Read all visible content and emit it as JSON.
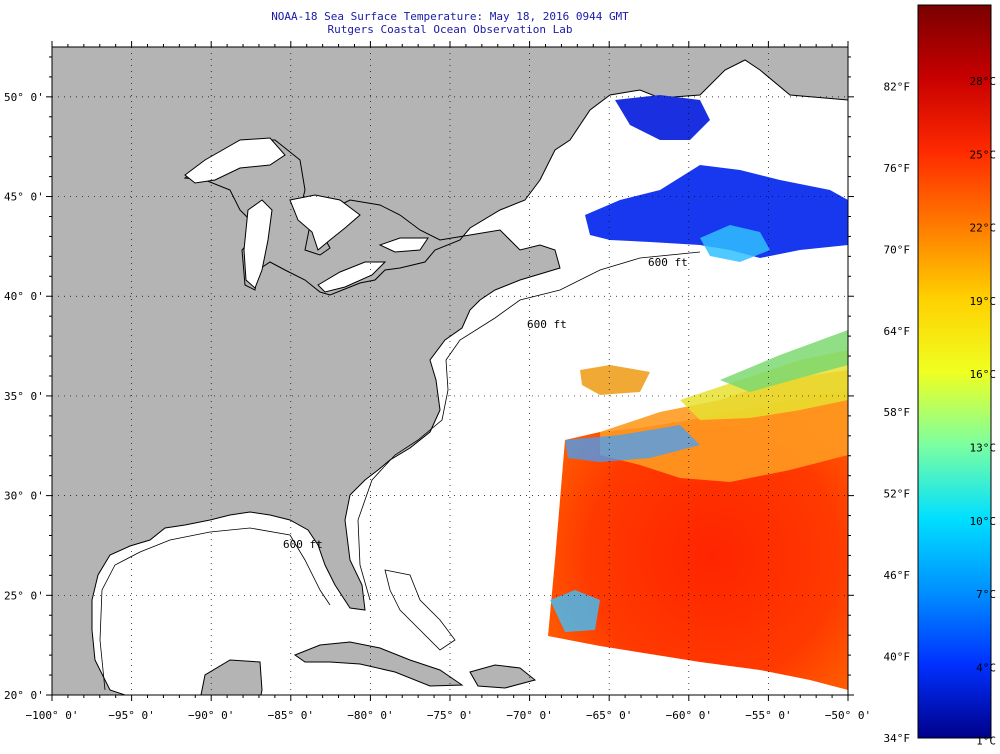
{
  "title": {
    "line1": "NOAA-18 Sea Surface Temperature:  May 18, 2016 0944 GMT",
    "line2": "Rutgers Coastal Ocean Observation Lab"
  },
  "map": {
    "lon_range": [
      -100,
      -50
    ],
    "lat_range": [
      20,
      52.5
    ],
    "lat_labels": [
      {
        "lat": 50,
        "text": "50° 0'"
      },
      {
        "lat": 45,
        "text": "45° 0'"
      },
      {
        "lat": 40,
        "text": "40° 0'"
      },
      {
        "lat": 35,
        "text": "35° 0'"
      },
      {
        "lat": 30,
        "text": "30° 0'"
      },
      {
        "lat": 25,
        "text": "25° 0'"
      },
      {
        "lat": 20,
        "text": "20° 0'"
      }
    ],
    "lon_labels": [
      {
        "lon": -100,
        "text": "−100° 0'"
      },
      {
        "lon": -95,
        "text": "−95° 0'"
      },
      {
        "lon": -90,
        "text": "−90° 0'"
      },
      {
        "lon": -85,
        "text": "−85° 0'"
      },
      {
        "lon": -80,
        "text": "−80° 0'"
      },
      {
        "lon": -75,
        "text": "−75° 0'"
      },
      {
        "lon": -70,
        "text": "−70° 0'"
      },
      {
        "lon": -65,
        "text": "−65° 0'"
      },
      {
        "lon": -60,
        "text": "−60° 0'"
      },
      {
        "lon": -55,
        "text": "−55° 0'"
      },
      {
        "lon": -50,
        "text": "−50° 0'"
      }
    ],
    "contour_labels": [
      "600 ft",
      "600 ft",
      "600 ft"
    ],
    "colors": {
      "land": "#b4b4b4",
      "water": "#ffffff",
      "grid": "#000000"
    }
  },
  "colorbar": {
    "fahrenheit": [
      "82°F",
      "76°F",
      "70°F",
      "64°F",
      "58°F",
      "52°F",
      "46°F",
      "40°F",
      "34°F"
    ],
    "celsius": [
      "28°C",
      "25°C",
      "22°C",
      "19°C",
      "16°C",
      "13°C",
      "10°C",
      "7°C",
      "4°C",
      "1°C"
    ],
    "gradient": [
      "#7a0000",
      "#c80000",
      "#ff2a00",
      "#ff7a00",
      "#ffd000",
      "#f0ff20",
      "#7cffa0",
      "#00e0ff",
      "#0090ff",
      "#0030ff",
      "#00008a"
    ]
  }
}
